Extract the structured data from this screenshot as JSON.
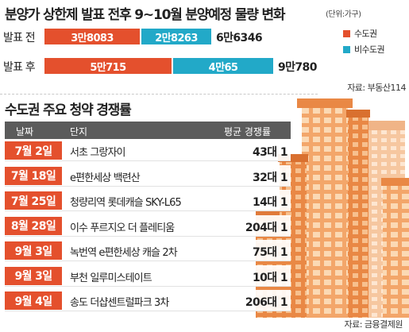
{
  "header": {
    "title": "분양가 상한제 발표 전후 9~10월 분양예정 물량 변화",
    "unit": "(단위:가구)"
  },
  "legend": [
    {
      "label": "수도권",
      "color": "#e4502d"
    },
    {
      "label": "비수도권",
      "color": "#22a9c8"
    }
  ],
  "chart_data": [
    {
      "type": "bar",
      "orientation": "horizontal",
      "stacked": true,
      "title": "분양가 상한제 발표 전후 9~10월 분양예정 물량 변화",
      "unit": "(단위:가구)",
      "categories": [
        "발표 전",
        "발표 후"
      ],
      "series": [
        {
          "name": "수도권",
          "color": "#e4502d",
          "values": [
            38083,
            50715
          ],
          "labels": [
            "3만8083",
            "5만715"
          ]
        },
        {
          "name": "비수도권",
          "color": "#22a9c8",
          "values": [
            28263,
            40065
          ],
          "labels": [
            "2만8263",
            "4만65"
          ]
        }
      ],
      "totals": [
        66346,
        90780
      ],
      "total_labels": [
        "6만6346",
        "9만780"
      ],
      "legend_position": "right",
      "source": "자료: 부동산114"
    },
    {
      "type": "table",
      "title": "수도권 주요 청약 경쟁률",
      "columns": [
        "날짜",
        "단지",
        "평균 경쟁률"
      ],
      "rows": [
        {
          "date": "7월 2일",
          "complex": "서초 그랑자이",
          "rate": "43대 1"
        },
        {
          "date": "7월 18일",
          "complex": "e편한세상 백련산",
          "rate": "32대 1"
        },
        {
          "date": "7월 25일",
          "complex": "청량리역 롯데캐슬 SKY-L65",
          "rate": "14대 1"
        },
        {
          "date": "8월 28일",
          "complex": "이수 푸르지오 더 플레티움",
          "rate": "204대 1"
        },
        {
          "date": "9월 3일",
          "complex": "녹번역 e편한세상 캐슬 2차",
          "rate": "75대 1"
        },
        {
          "date": "9월 3일",
          "complex": "부천 일루미스테이트",
          "rate": "10대 1"
        },
        {
          "date": "9월 4일",
          "complex": "송도 더샵센트럴파크 3차",
          "rate": "206대 1"
        }
      ],
      "source": "자료: 금융결제원"
    }
  ]
}
